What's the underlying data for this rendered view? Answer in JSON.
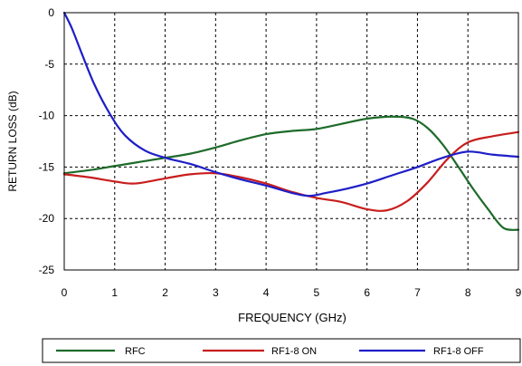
{
  "chart_data": {
    "type": "line",
    "xlabel": "FREQUENCY (GHz)",
    "ylabel": "RETURN LOSS (dB)",
    "xlim": [
      0,
      9
    ],
    "ylim": [
      -25,
      0
    ],
    "xticks": [
      "0",
      "1",
      "2",
      "3",
      "4",
      "5",
      "6",
      "7",
      "8",
      "9"
    ],
    "yticks": [
      "0",
      "-5",
      "-10",
      "-15",
      "-20",
      "-25"
    ],
    "grid": true,
    "legend_position": "bottom",
    "series": [
      {
        "name": "RFC",
        "color": "#1e6b2a",
        "x": [
          0,
          0.5,
          1,
          1.5,
          2,
          2.5,
          3,
          3.5,
          4,
          4.5,
          5,
          5.5,
          6,
          6.5,
          6.9,
          7.2,
          7.5,
          7.8,
          8.1,
          8.4,
          8.7,
          9
        ],
        "y": [
          -15.6,
          -15.3,
          -14.9,
          -14.5,
          -14.1,
          -13.7,
          -13.1,
          -12.4,
          -11.8,
          -11.5,
          -11.3,
          -10.8,
          -10.3,
          -10.1,
          -10.3,
          -11.2,
          -12.8,
          -14.9,
          -17.1,
          -19.1,
          -20.9,
          -21.1
        ]
      },
      {
        "name": "RF1-8 ON",
        "color": "#c81e1e",
        "x": [
          0,
          0.5,
          1,
          1.4,
          2,
          2.5,
          3,
          3.5,
          4,
          4.5,
          5,
          5.5,
          6,
          6.4,
          6.8,
          7.2,
          7.6,
          8,
          8.5,
          9
        ],
        "y": [
          -15.7,
          -16.0,
          -16.4,
          -16.6,
          -16.1,
          -15.7,
          -15.6,
          -16.0,
          -16.6,
          -17.4,
          -18.0,
          -18.4,
          -19.1,
          -19.2,
          -18.3,
          -16.5,
          -14.2,
          -12.6,
          -12.0,
          -11.6
        ]
      },
      {
        "name": "RF1-8 OFF",
        "color": "#1e1ec8",
        "x": [
          0,
          0.15,
          0.35,
          0.6,
          0.9,
          1.2,
          1.6,
          2,
          2.5,
          3,
          3.5,
          4,
          4.5,
          4.85,
          5.2,
          5.6,
          6,
          6.5,
          7,
          7.5,
          8,
          8.5,
          9
        ],
        "y": [
          0,
          -1.5,
          -4.0,
          -7.0,
          -9.8,
          -11.9,
          -13.4,
          -14.1,
          -14.7,
          -15.5,
          -16.2,
          -16.8,
          -17.5,
          -17.8,
          -17.5,
          -17.1,
          -16.6,
          -15.8,
          -15.0,
          -14.1,
          -13.5,
          -13.8,
          -14.0
        ]
      }
    ]
  }
}
